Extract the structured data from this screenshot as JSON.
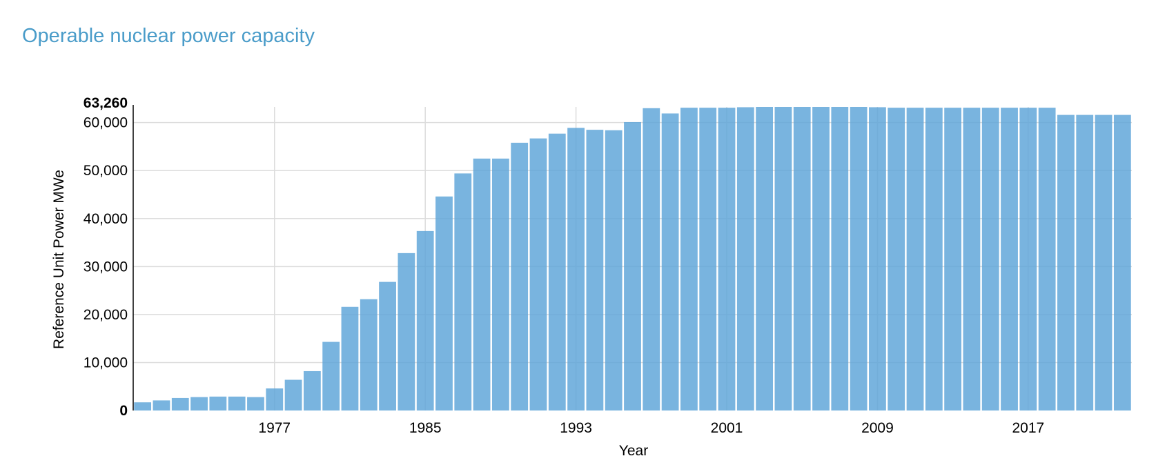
{
  "chart_data": {
    "type": "bar",
    "title": "Operable nuclear power capacity",
    "xlabel": "Year",
    "ylabel": "Reference Unit Power MWe",
    "ylim": [
      0,
      63260
    ],
    "y_ticks": [
      "0",
      "10,000",
      "20,000",
      "30,000",
      "40,000",
      "50,000",
      "60,000"
    ],
    "y_max_label": "63,260",
    "x_tick_labels": [
      "1977",
      "1985",
      "1993",
      "2001",
      "2009",
      "2017"
    ],
    "grid": true,
    "bar_color": "#5ba4d8",
    "title_color": "#4a9cc9",
    "categories": [
      1970,
      1971,
      1972,
      1973,
      1974,
      1975,
      1976,
      1977,
      1978,
      1979,
      1980,
      1981,
      1982,
      1983,
      1984,
      1985,
      1986,
      1987,
      1988,
      1989,
      1990,
      1991,
      1992,
      1993,
      1994,
      1995,
      1996,
      1997,
      1998,
      1999,
      2000,
      2001,
      2002,
      2003,
      2004,
      2005,
      2006,
      2007,
      2008,
      2009,
      2010,
      2011,
      2012,
      2013,
      2014,
      2015,
      2016,
      2017,
      2018,
      2019,
      2020,
      2021,
      2022
    ],
    "values": [
      1700,
      2100,
      2600,
      2800,
      2900,
      2900,
      2800,
      4600,
      6400,
      8200,
      14300,
      21600,
      23200,
      26800,
      32800,
      37400,
      44600,
      49400,
      52500,
      52500,
      55800,
      56700,
      57700,
      58900,
      58500,
      58400,
      60100,
      63000,
      61900,
      63100,
      63100,
      63100,
      63200,
      63260,
      63260,
      63260,
      63260,
      63260,
      63260,
      63200,
      63100,
      63100,
      63100,
      63100,
      63100,
      63100,
      63100,
      63100,
      63100,
      61600,
      61600,
      61600,
      61600
    ]
  }
}
